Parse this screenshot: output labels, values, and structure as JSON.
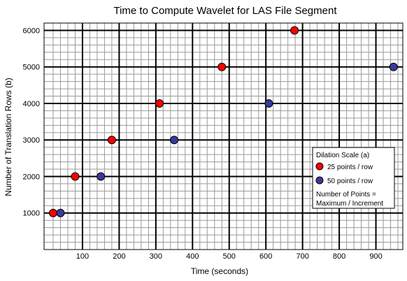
{
  "chart_data": {
    "type": "scatter",
    "title": "Time to Compute Wavelet for LAS File Segment",
    "xlabel": "Time (seconds)",
    "ylabel": "Number of Translation Rows (b)",
    "xlim": [
      0,
      1000
    ],
    "ylim": [
      0,
      6200
    ],
    "x_ticks": [
      "100",
      "200",
      "300",
      "400",
      "500",
      "600",
      "700",
      "800",
      "900"
    ],
    "y_ticks": [
      "1000",
      "2000",
      "3000",
      "4000",
      "5000",
      "6000"
    ],
    "grid": true,
    "legend": {
      "placement": "bottom-right",
      "title": "Dilation Scale (a)",
      "note_line1": "Number of Points =",
      "note_line2": "Maximum / Increment"
    },
    "series": [
      {
        "name": "25 points / row",
        "color": "#ff0000",
        "x": [
          20,
          80,
          180,
          310,
          480,
          678
        ],
        "y": [
          1000,
          2000,
          3000,
          4000,
          5000,
          6000
        ]
      },
      {
        "name": "50 points / row",
        "color": "#3a3a9a",
        "x": [
          40,
          150,
          350,
          608,
          948
        ],
        "y": [
          1000,
          2000,
          3000,
          4000,
          5000
        ]
      }
    ]
  }
}
